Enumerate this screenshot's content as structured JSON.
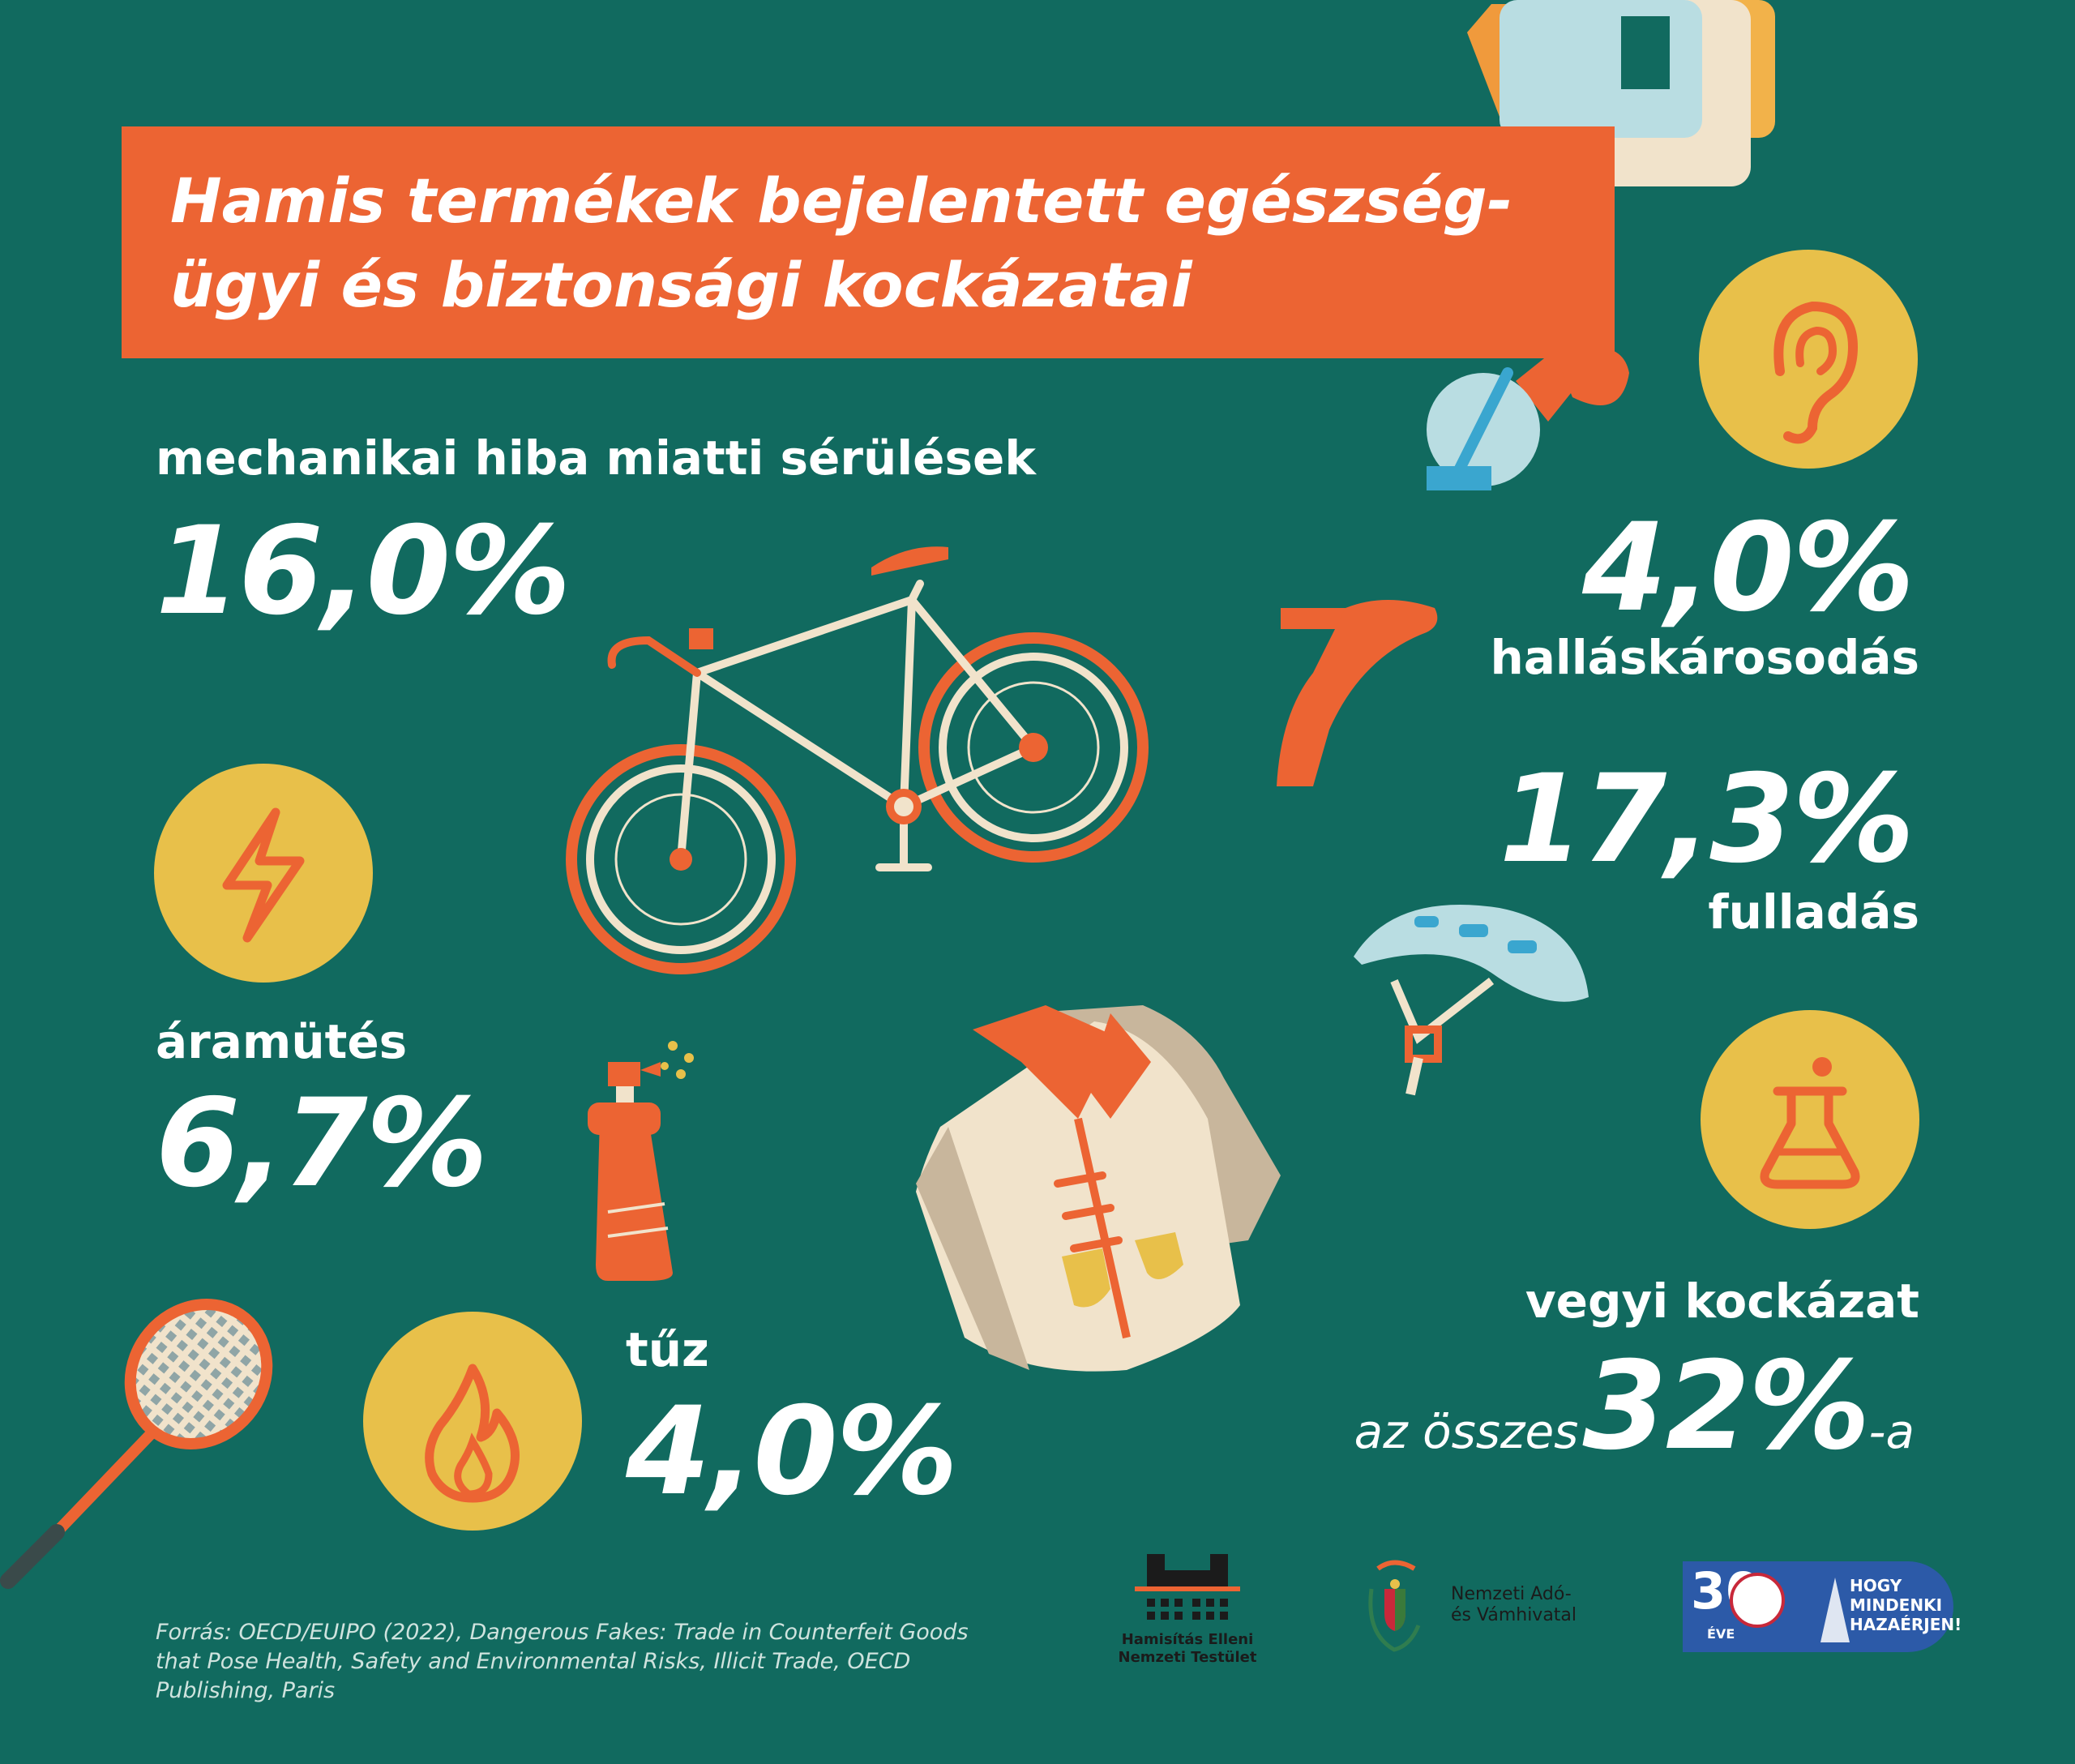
{
  "title": {
    "line1": "Hamis termékek bejelentett egészség-",
    "line2": "ügyi és biztonsági kockázatai"
  },
  "stats": {
    "mechanical": {
      "label": "mechanikai hiba miatti sérülések",
      "value": "16,0%"
    },
    "hearing": {
      "value": "4,0%",
      "label": "halláskárosodás"
    },
    "choking": {
      "value": "17,3%",
      "label": "fulladás"
    },
    "electric": {
      "label": "áramütés",
      "value": "6,7%"
    },
    "fire": {
      "label": "tűz",
      "value": "4,0%"
    },
    "chemical": {
      "label": "vegyi kockázat",
      "prefix": "az összes",
      "value": "32%",
      "suffix": "-a"
    }
  },
  "source": {
    "text": "Forrás: OECD/EUIPO (2022), Dangerous Fakes: Trade in Counterfeit Goods that Pose Health, Safety and Environmental Risks, Illicit Trade, OECD Publishing, Paris"
  },
  "logos": {
    "hent": {
      "line1": "Hamisítás Elleni",
      "line2": "Nemzeti Testület"
    },
    "nav": {
      "line1": "Nemzeti Adó-",
      "line2": "és Vámhivatal"
    },
    "badge": {
      "number": "30",
      "years": "ÉVE",
      "line1": "HOGY",
      "line2": "MINDENKI",
      "line3": "HAZAÉRJEN!"
    }
  },
  "icons": {
    "ear": "ear-icon",
    "lightning": "lightning-icon",
    "flask": "flask-icon",
    "flame": "flame-icon",
    "bicycle": "bicycle-illustration",
    "shoe": "high-heel-shoe-illustration",
    "helmet": "bike-helmet-illustration",
    "jacket": "jacket-illustration",
    "spray": "spray-bottle-illustration",
    "racket": "tennis-racket-illustration",
    "blender": "blender-illustration"
  },
  "colors": {
    "background": "#116a5f",
    "accent": "#ec6433",
    "yellow": "#e8c04a",
    "cream": "#f1e3cb",
    "text": "#ffffff"
  }
}
